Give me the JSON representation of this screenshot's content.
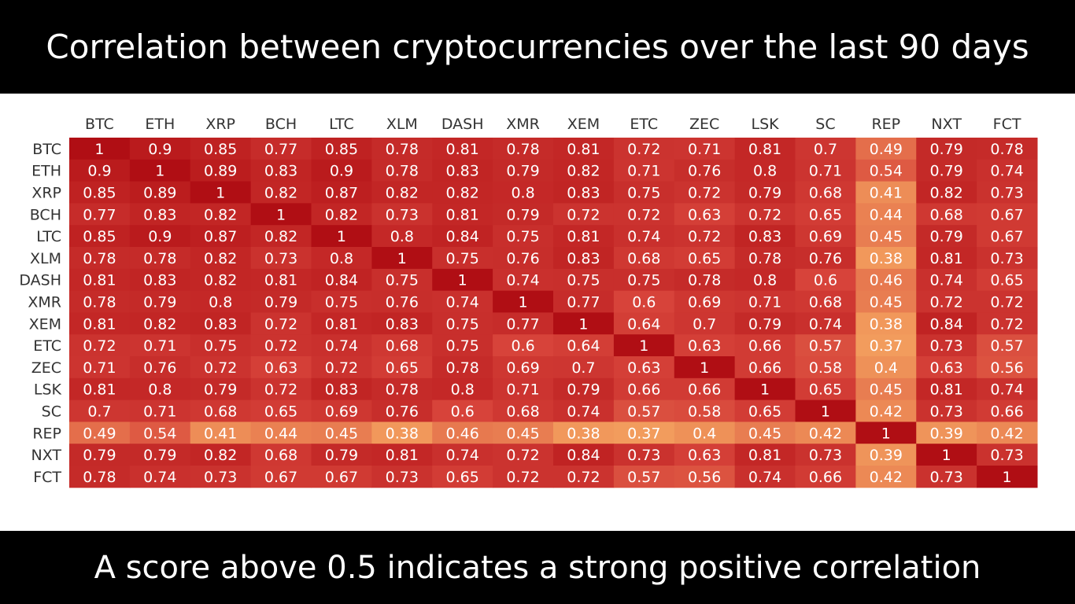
{
  "header": {
    "title": "Correlation between cryptocurrencies over the last 90 days"
  },
  "footer": {
    "caption": "A score above 0.5 indicates a strong positive correlation"
  },
  "chart_data": {
    "type": "heatmap",
    "title": "",
    "xlabel": "",
    "ylabel": "",
    "x": [
      "BTC",
      "ETH",
      "XRP",
      "BCH",
      "LTC",
      "XLM",
      "DASH",
      "XMR",
      "XEM",
      "ETC",
      "ZEC",
      "LSK",
      "SC",
      "REP",
      "NXT",
      "FCT"
    ],
    "y": [
      "BTC",
      "ETH",
      "XRP",
      "BCH",
      "LTC",
      "XLM",
      "DASH",
      "XMR",
      "XEM",
      "ETC",
      "ZEC",
      "LSK",
      "SC",
      "REP",
      "NXT",
      "FCT"
    ],
    "values": [
      [
        1,
        0.9,
        0.85,
        0.77,
        0.85,
        0.78,
        0.81,
        0.78,
        0.81,
        0.72,
        0.71,
        0.81,
        0.7,
        0.49,
        0.79,
        0.78
      ],
      [
        0.9,
        1,
        0.89,
        0.83,
        0.9,
        0.78,
        0.83,
        0.79,
        0.82,
        0.71,
        0.76,
        0.8,
        0.71,
        0.54,
        0.79,
        0.74
      ],
      [
        0.85,
        0.89,
        1,
        0.82,
        0.87,
        0.82,
        0.82,
        0.8,
        0.83,
        0.75,
        0.72,
        0.79,
        0.68,
        0.41,
        0.82,
        0.73
      ],
      [
        0.77,
        0.83,
        0.82,
        1,
        0.82,
        0.73,
        0.81,
        0.79,
        0.72,
        0.72,
        0.63,
        0.72,
        0.65,
        0.44,
        0.68,
        0.67
      ],
      [
        0.85,
        0.9,
        0.87,
        0.82,
        1,
        0.8,
        0.84,
        0.75,
        0.81,
        0.74,
        0.72,
        0.83,
        0.69,
        0.45,
        0.79,
        0.67
      ],
      [
        0.78,
        0.78,
        0.82,
        0.73,
        0.8,
        1,
        0.75,
        0.76,
        0.83,
        0.68,
        0.65,
        0.78,
        0.76,
        0.38,
        0.81,
        0.73
      ],
      [
        0.81,
        0.83,
        0.82,
        0.81,
        0.84,
        0.75,
        1,
        0.74,
        0.75,
        0.75,
        0.78,
        0.8,
        0.6,
        0.46,
        0.74,
        0.65
      ],
      [
        0.78,
        0.79,
        0.8,
        0.79,
        0.75,
        0.76,
        0.74,
        1,
        0.77,
        0.6,
        0.69,
        0.71,
        0.68,
        0.45,
        0.72,
        0.72
      ],
      [
        0.81,
        0.82,
        0.83,
        0.72,
        0.81,
        0.83,
        0.75,
        0.77,
        1,
        0.64,
        0.7,
        0.79,
        0.74,
        0.38,
        0.84,
        0.72
      ],
      [
        0.72,
        0.71,
        0.75,
        0.72,
        0.74,
        0.68,
        0.75,
        0.6,
        0.64,
        1,
        0.63,
        0.66,
        0.57,
        0.37,
        0.73,
        0.57
      ],
      [
        0.71,
        0.76,
        0.72,
        0.63,
        0.72,
        0.65,
        0.78,
        0.69,
        0.7,
        0.63,
        1,
        0.66,
        0.58,
        0.4,
        0.63,
        0.56
      ],
      [
        0.81,
        0.8,
        0.79,
        0.72,
        0.83,
        0.78,
        0.8,
        0.71,
        0.79,
        0.66,
        0.66,
        1,
        0.65,
        0.45,
        0.81,
        0.74
      ],
      [
        0.7,
        0.71,
        0.68,
        0.65,
        0.69,
        0.76,
        0.6,
        0.68,
        0.74,
        0.57,
        0.58,
        0.65,
        1,
        0.42,
        0.73,
        0.66
      ],
      [
        0.49,
        0.54,
        0.41,
        0.44,
        0.45,
        0.38,
        0.46,
        0.45,
        0.38,
        0.37,
        0.4,
        0.45,
        0.42,
        1,
        0.39,
        0.42
      ],
      [
        0.79,
        0.79,
        0.82,
        0.68,
        0.79,
        0.81,
        0.74,
        0.72,
        0.84,
        0.73,
        0.63,
        0.81,
        0.73,
        0.39,
        1,
        0.73
      ],
      [
        0.78,
        0.74,
        0.73,
        0.67,
        0.67,
        0.73,
        0.65,
        0.72,
        0.72,
        0.57,
        0.56,
        0.74,
        0.66,
        0.42,
        0.73,
        1
      ]
    ],
    "color_scale": {
      "low": "#f4a460",
      "mid": "#d7433a",
      "high": "#b00e14"
    },
    "legend": "none",
    "grid": false
  }
}
